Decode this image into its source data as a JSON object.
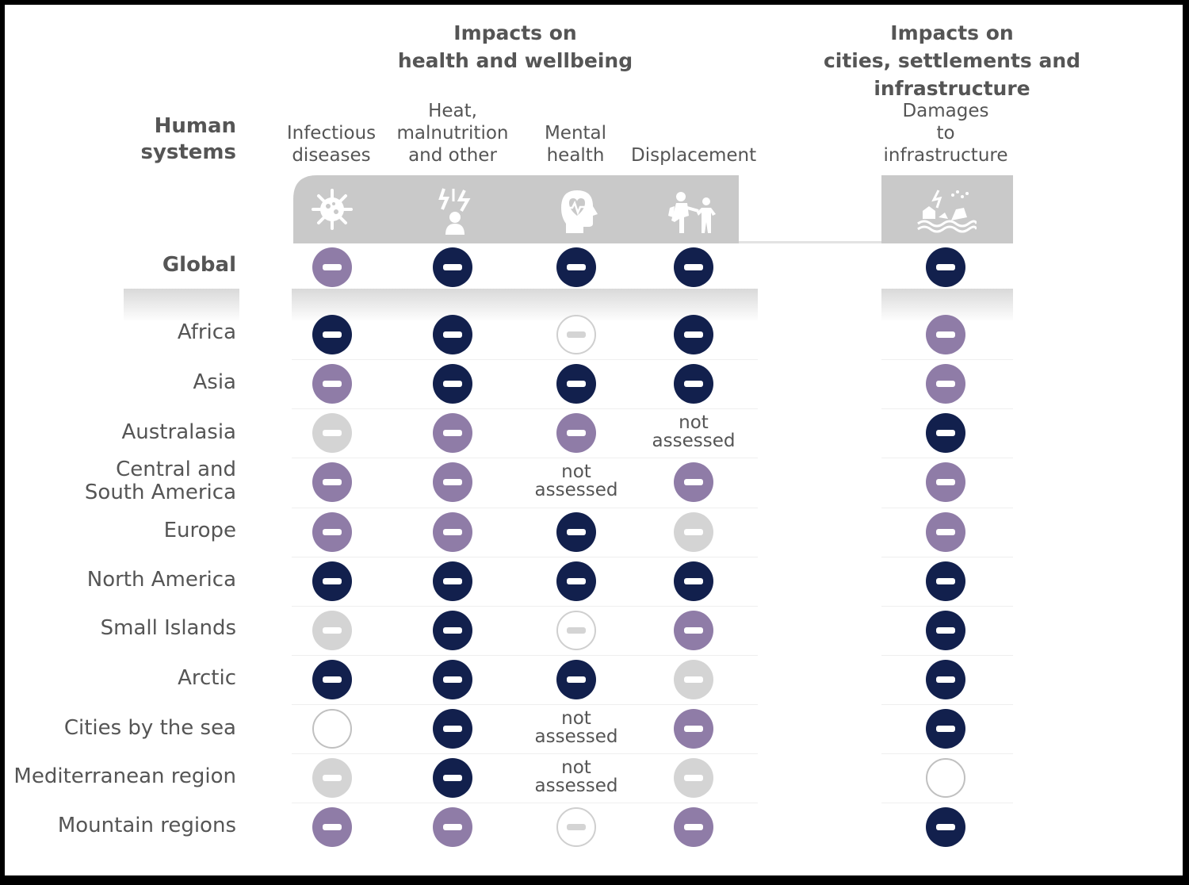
{
  "header": {
    "group_health": "Impacts on\nhealth and wellbeing",
    "group_cities": "Impacts on\ncities, settlements and infrastructure",
    "human_systems": "Human\nsystems"
  },
  "columns": [
    {
      "label": "Infectious\ndiseases",
      "icon": "virus-icon"
    },
    {
      "label": "Heat,\nmalnutrition\nand other",
      "icon": "heat-stress-icon"
    },
    {
      "label": "Mental\nhealth",
      "icon": "mental-health-icon"
    },
    {
      "label": "Displacement",
      "icon": "displacement-icon"
    },
    {
      "label": "Damages\nto\ninfrastructure",
      "icon": "infrastructure-damage-icon"
    }
  ],
  "not_assessed_label": "not\nassessed",
  "colors": {
    "high": "#12204d",
    "medium": "#8f7ca7",
    "low": "#d4d4d4",
    "band": "#c9c9c9"
  },
  "rows": [
    {
      "label": "Global",
      "values": [
        "medium",
        "high",
        "high",
        "high",
        "high"
      ]
    },
    {
      "label": "Africa",
      "values": [
        "high",
        "high",
        "limited",
        "high",
        "medium"
      ]
    },
    {
      "label": "Asia",
      "values": [
        "medium",
        "high",
        "high",
        "high",
        "medium"
      ]
    },
    {
      "label": "Australasia",
      "values": [
        "low",
        "medium",
        "medium",
        "not_assessed",
        "high"
      ]
    },
    {
      "label": "Central and\nSouth America",
      "values": [
        "medium",
        "medium",
        "not_assessed",
        "medium",
        "medium"
      ]
    },
    {
      "label": "Europe",
      "values": [
        "medium",
        "medium",
        "high",
        "low",
        "medium"
      ]
    },
    {
      "label": "North America",
      "values": [
        "high",
        "high",
        "high",
        "high",
        "high"
      ]
    },
    {
      "label": "Small Islands",
      "values": [
        "low",
        "high",
        "limited",
        "medium",
        "high"
      ]
    },
    {
      "label": "Arctic",
      "values": [
        "high",
        "high",
        "high",
        "low",
        "high"
      ]
    },
    {
      "label": "Cities by the sea",
      "values": [
        "none",
        "high",
        "not_assessed",
        "medium",
        "high"
      ]
    },
    {
      "label": "Mediterranean region",
      "values": [
        "low",
        "high",
        "not_assessed",
        "low",
        "none"
      ]
    },
    {
      "label": "Mountain regions",
      "values": [
        "medium",
        "medium",
        "limited",
        "medium",
        "high"
      ]
    }
  ]
}
